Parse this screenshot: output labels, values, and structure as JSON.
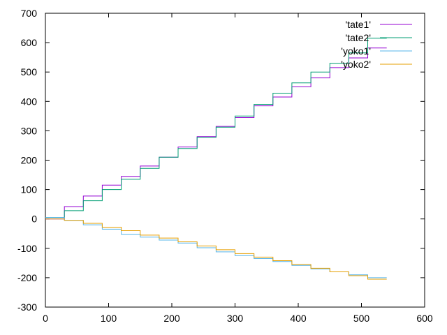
{
  "chart_data": {
    "type": "line",
    "title": "",
    "xlabel": "",
    "ylabel": "",
    "xlim": [
      0,
      600
    ],
    "ylim": [
      -300,
      700
    ],
    "x_ticks": [
      0,
      100,
      200,
      300,
      400,
      500,
      600
    ],
    "y_ticks": [
      -300,
      -200,
      -100,
      0,
      100,
      200,
      300,
      400,
      500,
      600,
      700
    ],
    "x_tick_labels": [
      "0",
      "100",
      "200",
      "300",
      "400",
      "500",
      "600"
    ],
    "y_tick_labels": [
      "-300",
      "-200",
      "-100",
      "0",
      "100",
      "200",
      "300",
      "400",
      "500",
      "600",
      "700"
    ],
    "grid": false,
    "legend_position": "top-right",
    "series": [
      {
        "name": "'tate1'",
        "color": "#9400d3",
        "x": [
          0,
          30,
          30,
          60,
          60,
          90,
          90,
          120,
          120,
          150,
          150,
          180,
          180,
          210,
          210,
          240,
          240,
          270,
          270,
          300,
          300,
          330,
          330,
          360,
          360,
          390,
          390,
          420,
          420,
          450,
          450,
          480,
          480,
          510,
          510,
          540
        ],
        "y": [
          0,
          0,
          42,
          42,
          78,
          78,
          115,
          115,
          145,
          145,
          180,
          180,
          210,
          210,
          245,
          245,
          280,
          280,
          315,
          315,
          345,
          345,
          385,
          385,
          415,
          415,
          450,
          450,
          480,
          480,
          515,
          515,
          548,
          548,
          582,
          582
        ]
      },
      {
        "name": "'tate2'",
        "color": "#009e73",
        "x": [
          0,
          30,
          30,
          60,
          60,
          90,
          90,
          120,
          120,
          150,
          150,
          180,
          180,
          210,
          210,
          240,
          240,
          270,
          270,
          300,
          300,
          330,
          330,
          360,
          360,
          390,
          390,
          420,
          420,
          450,
          450,
          480,
          480,
          510,
          510,
          540
        ],
        "y": [
          5,
          5,
          28,
          28,
          62,
          62,
          100,
          100,
          135,
          135,
          172,
          172,
          210,
          210,
          240,
          240,
          278,
          278,
          312,
          312,
          350,
          350,
          390,
          390,
          428,
          428,
          463,
          463,
          500,
          500,
          530,
          530,
          565,
          565,
          615,
          615
        ]
      },
      {
        "name": "'yoko1'",
        "color": "#56b4e9",
        "x": [
          0,
          30,
          30,
          60,
          60,
          90,
          90,
          120,
          120,
          150,
          150,
          180,
          180,
          210,
          210,
          240,
          240,
          270,
          270,
          300,
          300,
          330,
          330,
          360,
          360,
          390,
          390,
          420,
          420,
          450,
          450,
          480,
          480,
          510,
          510,
          540
        ],
        "y": [
          5,
          5,
          -5,
          -5,
          -20,
          -20,
          -35,
          -35,
          -52,
          -52,
          -62,
          -62,
          -72,
          -72,
          -82,
          -82,
          -98,
          -98,
          -112,
          -112,
          -125,
          -125,
          -135,
          -135,
          -145,
          -145,
          -158,
          -158,
          -170,
          -170,
          -180,
          -180,
          -190,
          -190,
          -200,
          -200
        ]
      },
      {
        "name": "'yoko2'",
        "color": "#e69f00",
        "x": [
          0,
          30,
          30,
          60,
          60,
          90,
          90,
          120,
          120,
          150,
          150,
          180,
          180,
          210,
          210,
          240,
          240,
          270,
          270,
          300,
          300,
          330,
          330,
          360,
          360,
          390,
          390,
          420,
          420,
          450,
          450,
          480,
          480,
          510,
          510,
          540
        ],
        "y": [
          0,
          0,
          -5,
          -5,
          -15,
          -15,
          -28,
          -28,
          -40,
          -40,
          -55,
          -55,
          -65,
          -65,
          -78,
          -78,
          -92,
          -92,
          -105,
          -105,
          -118,
          -118,
          -130,
          -130,
          -142,
          -142,
          -155,
          -155,
          -168,
          -168,
          -180,
          -180,
          -193,
          -193,
          -205,
          -205
        ]
      }
    ]
  }
}
